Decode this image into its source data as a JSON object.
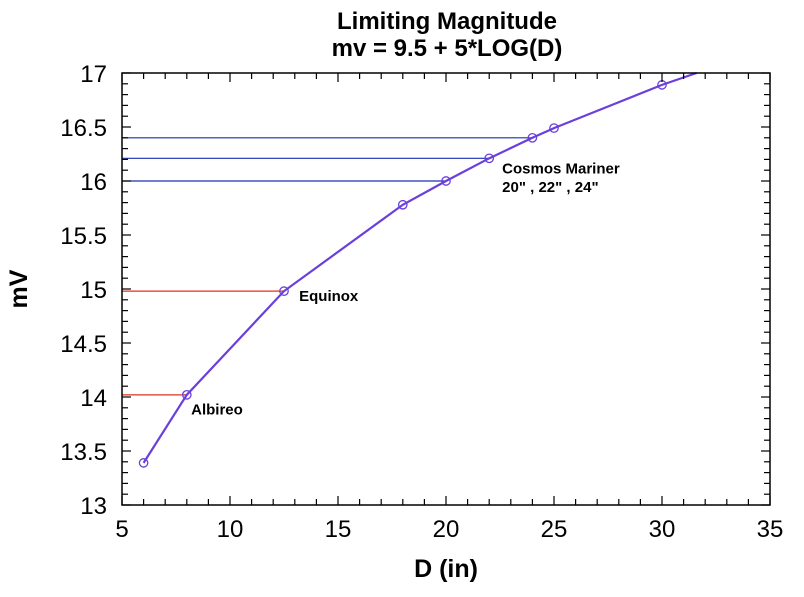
{
  "chart_data": {
    "type": "line",
    "title": "Limiting Magnitude",
    "subtitle": "mv = 9.5 + 5*LOG(D)",
    "xlabel": "D (in)",
    "ylabel": "mV",
    "xlim": [
      5,
      35
    ],
    "ylim": [
      13,
      17
    ],
    "x_ticks": [
      5,
      10,
      15,
      20,
      25,
      30,
      35
    ],
    "y_ticks": [
      13,
      13.5,
      14,
      14.5,
      15,
      15.5,
      16,
      16.5,
      17
    ],
    "x_tick_labels": [
      "5",
      "10",
      "15",
      "20",
      "25",
      "30",
      "35"
    ],
    "y_tick_labels": [
      "13",
      "13.5",
      "14",
      "14.5",
      "15",
      "15.5",
      "16",
      "16.5",
      "17"
    ],
    "x_minor_step": 1,
    "y_minor_step": 0.1,
    "grid": false,
    "series": [
      {
        "name": "mv = 9.5 + 5*LOG(D)",
        "color": "#6a3fdc",
        "marker": "open-circle",
        "x": [
          6,
          8,
          12.5,
          18,
          20,
          22,
          24,
          25,
          30
        ],
        "y": [
          13.39,
          14.02,
          14.98,
          15.78,
          16.0,
          16.21,
          16.4,
          16.49,
          16.89
        ],
        "line_extends_to_x": 31.6,
        "line_extends_to_y": 17.0
      }
    ],
    "reference_lines": [
      {
        "label": "Albireo",
        "x": 8,
        "y": 14.02,
        "color": "#e03020"
      },
      {
        "label": "Equinox",
        "x": 12.5,
        "y": 14.98,
        "color": "#e03020"
      },
      {
        "label": "Cosmos Mariner 20\"",
        "x": 20,
        "y": 16.0,
        "color": "#1a2fb0"
      },
      {
        "label": "Cosmos Mariner 22\"",
        "x": 22,
        "y": 16.21,
        "color": "#1a2fb0"
      },
      {
        "label": "Cosmos Mariner 24\"",
        "x": 24,
        "y": 16.4,
        "color": "#1a2fb0"
      }
    ],
    "annotations": [
      {
        "text": "Albireo",
        "x": 8.2,
        "y": 13.84
      },
      {
        "text": "Equinox",
        "x": 13.2,
        "y": 14.89
      },
      {
        "text": "Cosmos Mariner",
        "x": 22.6,
        "y": 16.07
      },
      {
        "text": "20\" , 22\" , 24\"",
        "x": 22.6,
        "y": 15.9
      }
    ]
  }
}
